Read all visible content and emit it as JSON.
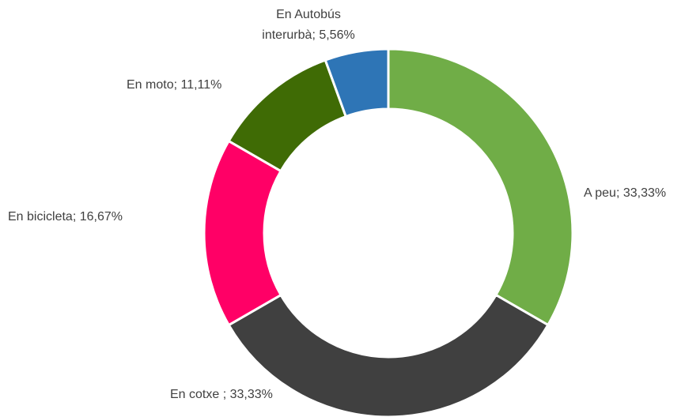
{
  "chart_data": {
    "type": "donut",
    "categories": [
      "A peu",
      "En cotxe ",
      "En bicicleta",
      "En moto",
      "En Autobús interurbà"
    ],
    "values": [
      33.33,
      33.33,
      16.67,
      11.11,
      5.56
    ],
    "value_labels": [
      "33,33%",
      "33,33%",
      "16,67%",
      "11,11%",
      "5,56%"
    ],
    "label_separator": "; ",
    "colors": [
      "#70ad47",
      "#404040",
      "#ff0066",
      "#3f6b05",
      "#2e75b6"
    ]
  }
}
